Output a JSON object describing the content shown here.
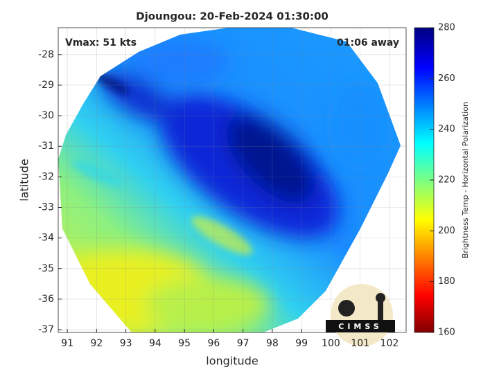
{
  "title": "Djoungou: 20-Feb-2024 01:30:00",
  "annotations": {
    "vmax": "Vmax: 51 kts",
    "away": "01:06 away"
  },
  "map": {
    "xlabel": "longitude",
    "ylabel": "latitude",
    "xlim": [
      90.69,
      102.57
    ],
    "ylim": [
      -37.09,
      -27.12
    ],
    "xticks": [
      91,
      92,
      93,
      94,
      95,
      96,
      97,
      98,
      99,
      100,
      101,
      102
    ],
    "yticks": [
      -28,
      -29,
      -30,
      -31,
      -32,
      -33,
      -34,
      -35,
      -36,
      -37
    ]
  },
  "colorbar": {
    "label": "Brightness Temp - Horizontal Polarization",
    "lim": [
      160,
      280
    ],
    "ticks": [
      160,
      180,
      200,
      220,
      240,
      260,
      280
    ]
  },
  "logo": "CIMSS"
}
